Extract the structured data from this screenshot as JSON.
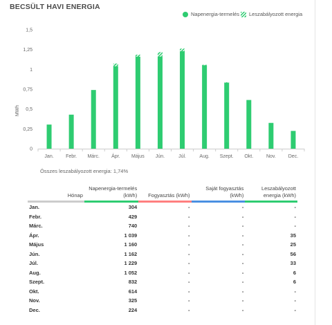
{
  "title": "BECSÜLT HAVI ENERGIA",
  "legend": {
    "production": "Napenergia-termelés",
    "curtailed": "Leszabályozott energia"
  },
  "colors": {
    "production": "#2ecc71",
    "consumption": "#ff7f7f",
    "self_consumption": "#4a90e2",
    "curtailed": "#2ecc71",
    "header_gray": "#c8c8c8"
  },
  "chart_data": {
    "type": "bar",
    "categories": [
      "Jan.",
      "Febr.",
      "Márc.",
      "Ápr.",
      "Május",
      "Jún.",
      "Júl.",
      "Aug.",
      "Szept.",
      "Okt.",
      "Nov.",
      "Dec."
    ],
    "series": [
      {
        "name": "Napenergia-termelés",
        "values": [
          0.304,
          0.429,
          0.74,
          1.039,
          1.16,
          1.162,
          1.229,
          1.052,
          0.832,
          0.614,
          0.325,
          0.224
        ]
      },
      {
        "name": "Leszabályozott energia",
        "values": [
          0,
          0,
          0,
          0.035,
          0.025,
          0.056,
          0.033,
          0.006,
          0.006,
          0,
          0,
          0
        ]
      }
    ],
    "ylabel": "MWh",
    "ylim": [
      0,
      1.5
    ],
    "yticks": [
      "0",
      "0,25",
      "0,5",
      "0,75",
      "1",
      "1,25",
      "1,5"
    ],
    "stacked": true,
    "grid": false,
    "legend_position": "top-right"
  },
  "summary": "Összes leszabályozott energia: 1,74%",
  "table": {
    "headers": {
      "month": "Hónap",
      "production": "Napenergia-termelés (kWh)",
      "consumption": "Fogyasztás (kWh)",
      "self_consumption": "Saját fogyasztás (kWh)",
      "curtailed": "Leszabályozott energia (kWh)"
    },
    "rows": [
      {
        "month": "Jan.",
        "production": "304",
        "consumption": "-",
        "self": "-",
        "curtailed": "-"
      },
      {
        "month": "Febr.",
        "production": "429",
        "consumption": "-",
        "self": "-",
        "curtailed": "-"
      },
      {
        "month": "Márc.",
        "production": "740",
        "consumption": "-",
        "self": "-",
        "curtailed": "-"
      },
      {
        "month": "Ápr.",
        "production": "1 039",
        "consumption": "-",
        "self": "-",
        "curtailed": "35"
      },
      {
        "month": "Május",
        "production": "1 160",
        "consumption": "-",
        "self": "-",
        "curtailed": "25"
      },
      {
        "month": "Jún.",
        "production": "1 162",
        "consumption": "-",
        "self": "-",
        "curtailed": "56"
      },
      {
        "month": "Júl.",
        "production": "1 229",
        "consumption": "-",
        "self": "-",
        "curtailed": "33"
      },
      {
        "month": "Aug.",
        "production": "1 052",
        "consumption": "-",
        "self": "-",
        "curtailed": "6"
      },
      {
        "month": "Szept.",
        "production": "832",
        "consumption": "-",
        "self": "-",
        "curtailed": "6"
      },
      {
        "month": "Okt.",
        "production": "614",
        "consumption": "-",
        "self": "-",
        "curtailed": "-"
      },
      {
        "month": "Nov.",
        "production": "325",
        "consumption": "-",
        "self": "-",
        "curtailed": "-"
      },
      {
        "month": "Dec.",
        "production": "224",
        "consumption": "-",
        "self": "-",
        "curtailed": "-"
      }
    ]
  }
}
